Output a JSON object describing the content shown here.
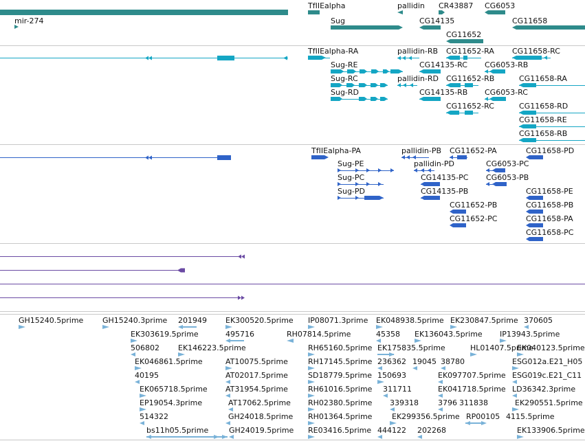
{
  "colors": {
    "gene": "#2e8b8b",
    "transcript": "#14a6c4",
    "protein": "#2f63c8",
    "alignment": "#6a4aa3",
    "est": "#79b2d8",
    "divider": "#c8c8c8",
    "text": "#111111"
  },
  "tracks": {
    "genes": {
      "labels": [
        "mir-274",
        "TfIIEalpha",
        "pallidin",
        "CR43887",
        "CG6053",
        "Sug",
        "CG14135",
        "CG11658",
        "CG11652"
      ]
    },
    "transcripts": {
      "labels": [
        "TfIIEalpha-RA",
        "pallidin-RB",
        "CG11652-RA",
        "CG11658-RC",
        "Sug-RE",
        "CG14135-RC",
        "CG6053-RB",
        "Sug-RC",
        "pallidin-RD",
        "CG11652-RB",
        "CG11658-RA",
        "Sug-RD",
        "CG14135-RB",
        "CG6053-RC",
        "CG11652-RC",
        "CG11658-RD",
        "CG11658-RE",
        "CG11658-RB"
      ]
    },
    "proteins": {
      "labels": [
        "TfIIEalpha-PA",
        "pallidin-PB",
        "CG11652-PA",
        "CG11658-PD",
        "Sug-PE",
        "pallidin-PD",
        "CG6053-PC",
        "Sug-PC",
        "CG14135-PC",
        "CG6053-PB",
        "Sug-PD",
        "CG14135-PB",
        "CG11658-PE",
        "CG11652-PB",
        "CG11658-PB",
        "CG11652-PC",
        "CG11658-PA",
        "CG11658-PC"
      ]
    },
    "ests": {
      "labels": [
        "GH15240.5prime",
        "GH15240.3prime",
        "201949",
        "EK300520.5prime",
        "IP08071.3prime",
        "EK048938.5prime",
        "EK230847.5prime",
        "370605",
        "EK303619.5prime",
        "495716",
        "RH07814.5prime",
        "45358",
        "EK136043.5prime",
        "IP13943.5prime",
        "506802",
        "EK146223.5prime",
        "RH65160.5prime",
        "EK175835.5prime",
        "HL01407.5prime",
        "EK040123.5prime",
        "EK046861.5prime",
        "AT10075.5prime",
        "RH17145.5prime",
        "236362",
        "19045",
        "38780",
        "ESG012a.E21_H05",
        "40195",
        "AT02017.5prime",
        "SD18779.5prime",
        "150693",
        "EK097707.5prime",
        "ESG019c.E21_C11",
        "EK065718.5prime",
        "AT31954.5prime",
        "RH61016.5prime",
        "311711",
        "EK041718.5prime",
        "LD36342.3prime",
        "EP19054.3prime",
        "AT17062.5prime",
        "RH02380.5prime",
        "339318",
        "3796",
        "311838",
        "EK290551.5prime",
        "514322",
        "GH24018.5prime",
        "RH01364.5prime",
        "EK299356.5prime",
        "RP00105",
        "4115.5prime",
        "bs11h05.5prime",
        "GH24019.5prime",
        "RE03416.5prime",
        "444122",
        "202268",
        "EK133906.5prime"
      ]
    }
  }
}
